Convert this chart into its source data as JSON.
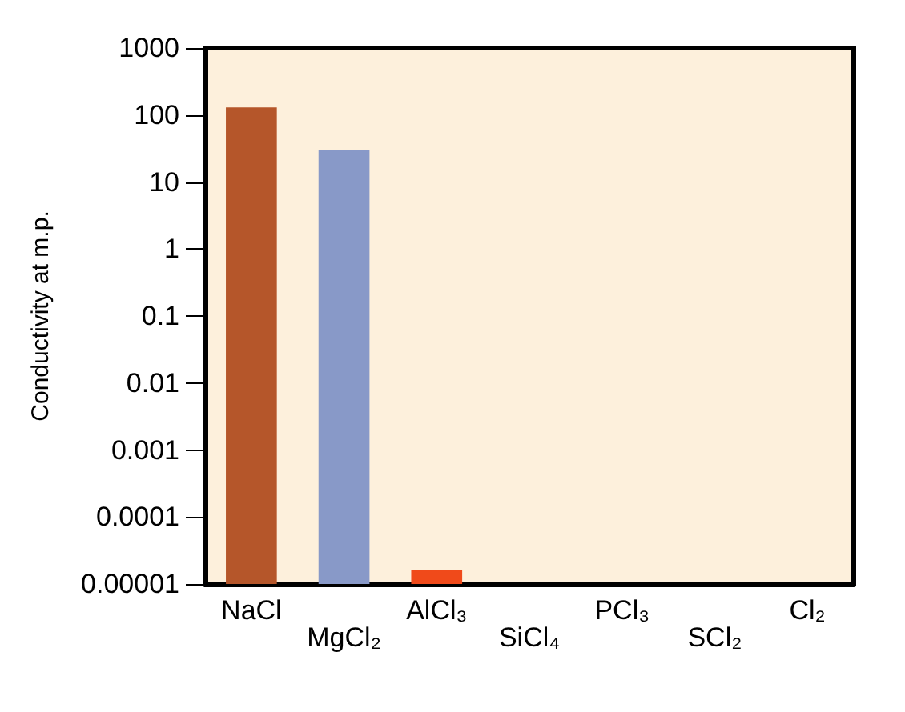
{
  "chart_data": {
    "type": "bar",
    "ylabel": "Conductivity at m.p.",
    "categories": [
      "NaCl",
      "MgCl₂",
      "AlCl₃",
      "SiCl₄",
      "PCl₃",
      "SCl₂",
      "Cl₂"
    ],
    "values": [
      130,
      30,
      1.6e-05,
      null,
      null,
      null,
      null
    ],
    "colors": [
      "#b5562a",
      "#8899c8",
      "#f04a1a",
      null,
      null,
      null,
      null
    ],
    "log": true,
    "ylim": [
      1e-05,
      1000
    ],
    "yticks": [
      {
        "value": 1e-05,
        "label": "0.00001"
      },
      0.0001,
      0.001,
      0.01,
      0.1,
      1,
      10,
      100,
      1000
    ],
    "grid": false
  }
}
